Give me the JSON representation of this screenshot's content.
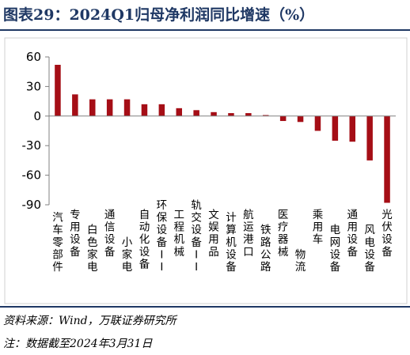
{
  "figure": {
    "title": "图表29：2024Q1归母净利润同比增速（%）",
    "source": "资料来源：Wind，万联证券研究所",
    "note": "注：数据截至2024年3月31日"
  },
  "colors": {
    "bar": "#a50e16",
    "axis": "#808080",
    "rule": "#1f3864",
    "title": "#1f3864"
  },
  "chart_data": {
    "type": "bar",
    "categories": [
      "汽车零部件",
      "专用设备",
      "白色家电",
      "通信设备",
      "小家电",
      "自动化设备",
      "环保设备II",
      "工程机械",
      "轨交设备II",
      "文娱用品",
      "计算机设备",
      "航运港口",
      "铁路公路",
      "医疗器械",
      "物流",
      "乘用车",
      "电网设备",
      "通用设备",
      "风电设备",
      "光伏设备"
    ],
    "values": [
      52,
      22,
      17,
      17,
      17,
      12,
      12,
      8,
      6,
      4,
      3,
      3,
      1,
      -5,
      -6,
      -15,
      -25,
      -26,
      -45,
      -88
    ],
    "yticks": [
      60,
      30,
      0,
      -30,
      -60,
      -90
    ],
    "ylim": [
      -90,
      60
    ],
    "title": "",
    "xlabel": "",
    "ylabel": "",
    "grid": false
  }
}
